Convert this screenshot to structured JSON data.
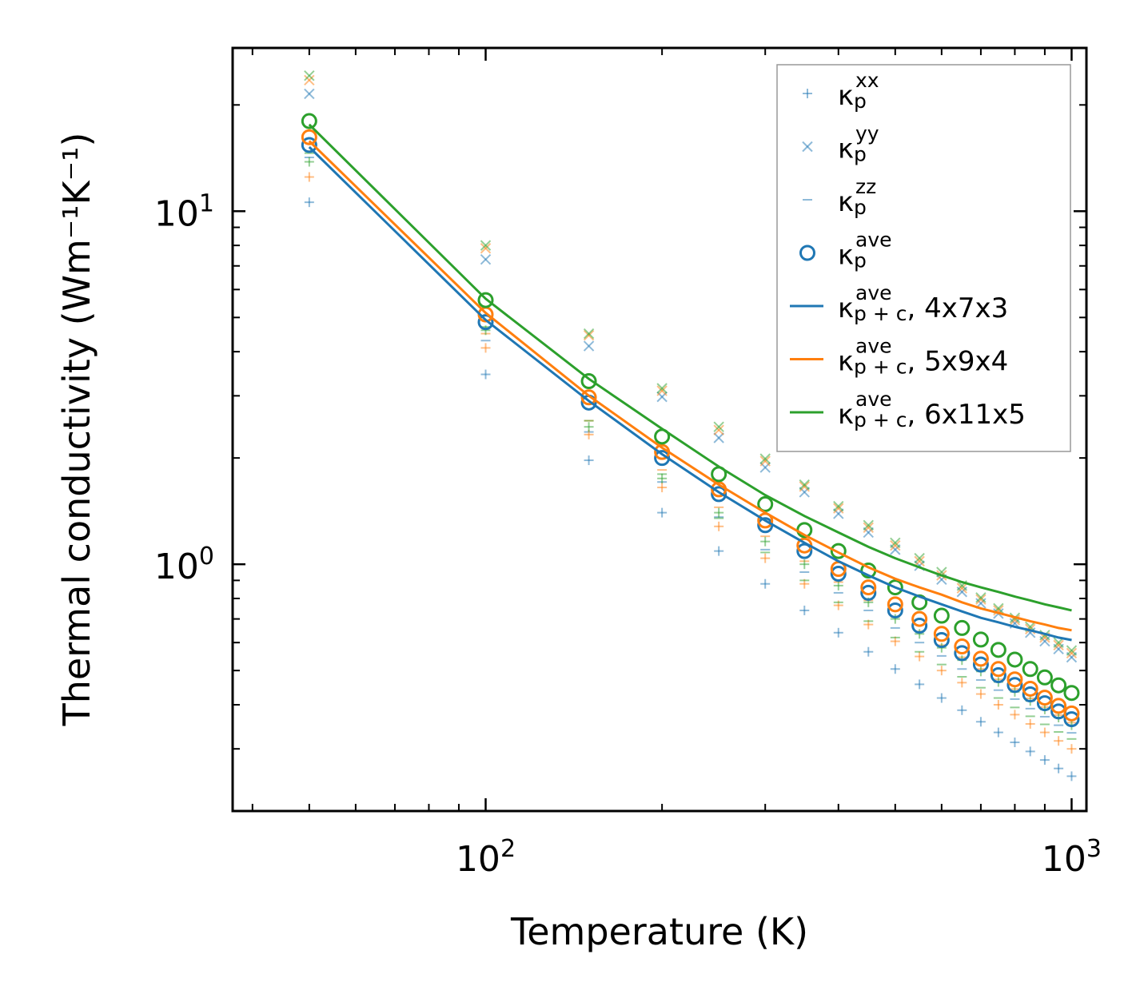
{
  "chart_data": {
    "type": "scatter",
    "title": "",
    "xlabel": "Temperature (K)",
    "ylabel": "Thermal conductivity (Wm⁻¹K⁻¹)",
    "xscale": "log",
    "yscale": "log",
    "xlim": [
      37,
      1060
    ],
    "ylim": [
      0.2,
      29
    ],
    "xticks": [
      {
        "value": 100,
        "base": "10",
        "exp": "2"
      },
      {
        "value": 1000,
        "base": "10",
        "exp": "3"
      }
    ],
    "yticks": [
      {
        "value": 1,
        "base": "10",
        "exp": "0"
      },
      {
        "value": 10,
        "base": "10",
        "exp": "1"
      }
    ],
    "legend_position": "top-right",
    "temperatures": [
      50,
      100,
      150,
      200,
      250,
      300,
      350,
      400,
      450,
      500,
      550,
      600,
      650,
      700,
      750,
      800,
      850,
      900,
      950,
      1000
    ],
    "series": [
      {
        "name": "4x7x3",
        "color": "#1f77b4",
        "kappa_xx": [
          10.6,
          3.45,
          1.97,
          1.4,
          1.09,
          0.88,
          0.74,
          0.64,
          0.565,
          0.505,
          0.457,
          0.418,
          0.386,
          0.358,
          0.334,
          0.313,
          0.295,
          0.279,
          0.264,
          0.251
        ],
        "kappa_yy": [
          21.5,
          7.3,
          4.15,
          2.98,
          2.28,
          1.88,
          1.6,
          1.39,
          1.23,
          1.1,
          0.99,
          0.905,
          0.835,
          0.775,
          0.725,
          0.68,
          0.64,
          0.605,
          0.575,
          0.545
        ],
        "kappa_zz": [
          14.2,
          4.3,
          2.37,
          1.71,
          1.36,
          1.1,
          0.95,
          0.83,
          0.74,
          0.66,
          0.6,
          0.55,
          0.505,
          0.47,
          0.44,
          0.415,
          0.39,
          0.37,
          0.35,
          0.333
        ],
        "kappa_ave": [
          15.4,
          4.85,
          2.87,
          2.0,
          1.58,
          1.29,
          1.09,
          0.94,
          0.83,
          0.74,
          0.67,
          0.61,
          0.56,
          0.52,
          0.485,
          0.455,
          0.428,
          0.404,
          0.383,
          0.364
        ],
        "kappa_pc_ave": [
          15.2,
          4.92,
          2.9,
          2.05,
          1.6,
          1.33,
          1.15,
          1.02,
          0.93,
          0.86,
          0.81,
          0.77,
          0.735,
          0.705,
          0.685,
          0.665,
          0.65,
          0.635,
          0.62,
          0.61
        ]
      },
      {
        "name": "5x9x4",
        "color": "#ff7f0e",
        "kappa_xx": [
          12.5,
          4.1,
          2.33,
          1.65,
          1.28,
          1.04,
          0.88,
          0.765,
          0.675,
          0.605,
          0.548,
          0.5,
          0.462,
          0.429,
          0.4,
          0.375,
          0.353,
          0.334,
          0.316,
          0.3
        ],
        "kappa_yy": [
          23.5,
          7.85,
          4.45,
          3.1,
          2.4,
          1.96,
          1.66,
          1.44,
          1.27,
          1.13,
          1.02,
          0.93,
          0.855,
          0.795,
          0.74,
          0.695,
          0.655,
          0.62,
          0.59,
          0.56
        ],
        "kappa_zz": [
          14.8,
          4.5,
          2.55,
          1.85,
          1.45,
          1.2,
          1.02,
          0.89,
          0.79,
          0.71,
          0.645,
          0.59,
          0.545,
          0.505,
          0.472,
          0.443,
          0.417,
          0.394,
          0.374,
          0.356
        ],
        "kappa_ave": [
          16.2,
          5.1,
          2.97,
          2.08,
          1.63,
          1.33,
          1.13,
          0.97,
          0.86,
          0.77,
          0.7,
          0.635,
          0.585,
          0.54,
          0.505,
          0.472,
          0.444,
          0.419,
          0.397,
          0.378
        ],
        "kappa_pc_ave": [
          15.8,
          5.15,
          3.0,
          2.14,
          1.68,
          1.4,
          1.21,
          1.08,
          0.98,
          0.91,
          0.86,
          0.82,
          0.78,
          0.75,
          0.728,
          0.708,
          0.69,
          0.675,
          0.66,
          0.65
        ]
      },
      {
        "name": "6x11x5",
        "color": "#2ca02c",
        "kappa_xx": [
          13.8,
          4.6,
          2.45,
          1.75,
          1.4,
          1.16,
          1.0,
          0.87,
          0.78,
          0.7,
          0.635,
          0.58,
          0.535,
          0.497,
          0.464,
          0.435,
          0.41,
          0.388,
          0.368,
          0.35
        ],
        "kappa_yy": [
          24.2,
          8.0,
          4.5,
          3.15,
          2.45,
          1.99,
          1.68,
          1.46,
          1.29,
          1.15,
          1.04,
          0.95,
          0.87,
          0.805,
          0.75,
          0.705,
          0.665,
          0.63,
          0.6,
          0.57
        ],
        "kappa_zz": [
          14.6,
          4.7,
          2.55,
          1.8,
          1.35,
          1.08,
          0.9,
          0.78,
          0.69,
          0.62,
          0.565,
          0.52,
          0.48,
          0.447,
          0.418,
          0.393,
          0.371,
          0.352,
          0.335,
          0.32
        ],
        "kappa_ave": [
          18.0,
          5.6,
          3.3,
          2.3,
          1.8,
          1.48,
          1.25,
          1.09,
          0.96,
          0.86,
          0.78,
          0.715,
          0.66,
          0.612,
          0.572,
          0.537,
          0.505,
          0.478,
          0.454,
          0.432
        ],
        "kappa_pc_ave": [
          17.6,
          5.65,
          3.35,
          2.42,
          1.89,
          1.57,
          1.37,
          1.23,
          1.12,
          1.04,
          0.98,
          0.93,
          0.89,
          0.86,
          0.835,
          0.81,
          0.79,
          0.77,
          0.755,
          0.74
        ]
      }
    ],
    "legend": [
      {
        "kind": "plus",
        "color": "#1f77b4",
        "symbol": "κ",
        "sub": "p",
        "sup": "xx",
        "suffix": ""
      },
      {
        "kind": "x",
        "color": "#1f77b4",
        "symbol": "κ",
        "sub": "p",
        "sup": "yy",
        "suffix": ""
      },
      {
        "kind": "dash",
        "color": "#1f77b4",
        "symbol": "κ",
        "sub": "p",
        "sup": "zz",
        "suffix": ""
      },
      {
        "kind": "circle",
        "color": "#1f77b4",
        "symbol": "κ",
        "sub": "p",
        "sup": "ave",
        "suffix": ""
      },
      {
        "kind": "line",
        "color": "#1f77b4",
        "symbol": "κ",
        "sub": "p + c",
        "sup": "ave",
        "suffix": ", 4x7x3"
      },
      {
        "kind": "line",
        "color": "#ff7f0e",
        "symbol": "κ",
        "sub": "p + c",
        "sup": "ave",
        "suffix": ", 5x9x4"
      },
      {
        "kind": "line",
        "color": "#2ca02c",
        "symbol": "κ",
        "sub": "p + c",
        "sup": "ave",
        "suffix": ", 6x11x5"
      }
    ]
  }
}
